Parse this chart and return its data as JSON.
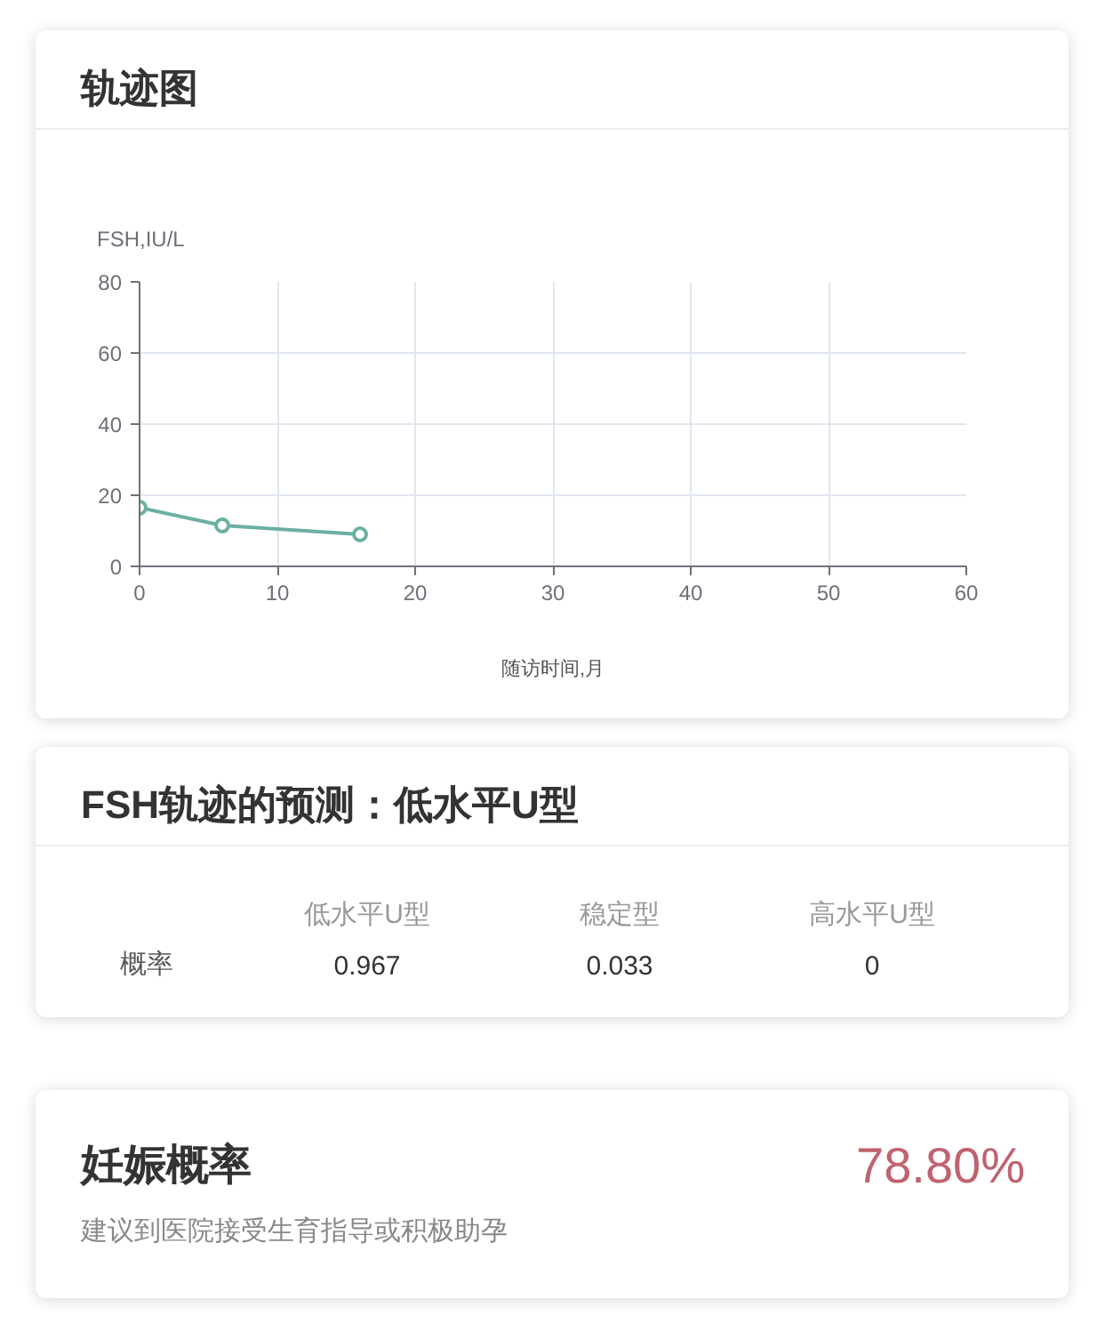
{
  "chart_data": [
    {
      "type": "line",
      "title": "轨迹图",
      "xlabel": "随访时间,月",
      "ylabel": "FSH,IU/L",
      "x": [
        0,
        6,
        16
      ],
      "series": [
        {
          "color": "#6bb0a4",
          "values": [
            16.5,
            11.5,
            9
          ]
        }
      ],
      "xlim": [
        0,
        60
      ],
      "ylim": [
        0,
        80
      ],
      "xticks": [
        0,
        10,
        20,
        30,
        40,
        50,
        60
      ],
      "yticks": [
        0,
        20,
        40,
        60,
        80
      ],
      "grid": true,
      "marker": "circle"
    },
    {
      "type": "other",
      "title": "FSH轨迹的预测：低水平U型",
      "categories": [
        "低水平U型",
        "稳定型",
        "高水平U型"
      ],
      "series": [
        {
          "name": "概率",
          "values": [
            0.967,
            0.033,
            0
          ]
        }
      ],
      "data_labels": true
    },
    {
      "type": "other",
      "title": "妊娠概率",
      "subtitle": "建议到医院接受生育指导或积极助孕",
      "annotations": [
        "78.80%"
      ]
    }
  ]
}
